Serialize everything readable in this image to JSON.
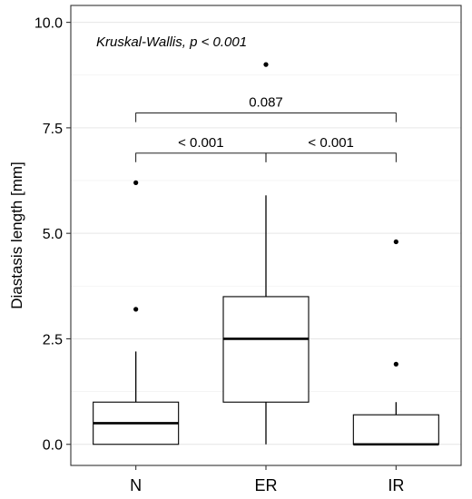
{
  "chart_data": {
    "type": "box",
    "title": "",
    "xlabel": "",
    "ylabel": "Diastasis length [mm]",
    "ylim": [
      -0.5,
      10.4
    ],
    "y_ticks": [
      0.0,
      2.5,
      5.0,
      7.5,
      10.0
    ],
    "y_tick_labels": [
      "0.0",
      "2.5",
      "5.0",
      "7.5",
      "10.0"
    ],
    "grid": true,
    "categories": [
      "N",
      "ER",
      "IR"
    ],
    "boxes": [
      {
        "category": "N",
        "whisker_low": 0.0,
        "q1": 0.0,
        "median": 0.5,
        "q3": 1.0,
        "whisker_high": 2.2,
        "outliers": [
          3.2,
          6.2
        ]
      },
      {
        "category": "ER",
        "whisker_low": 0.0,
        "q1": 1.0,
        "median": 2.5,
        "q3": 3.5,
        "whisker_high": 5.9,
        "outliers": [
          9.0
        ]
      },
      {
        "category": "IR",
        "whisker_low": 0.0,
        "q1": 0.0,
        "median": 0.0,
        "q3": 0.7,
        "whisker_high": 1.0,
        "outliers": [
          1.9,
          4.8
        ]
      }
    ],
    "annotation": "Kruskal-Wallis,  p < 0.001",
    "comparisons": [
      {
        "from": "N",
        "to": "ER",
        "y": 6.9,
        "label": "< 0.001"
      },
      {
        "from": "ER",
        "to": "IR",
        "y": 6.9,
        "label": "< 0.001"
      },
      {
        "from": "N",
        "to": "IR",
        "y": 7.85,
        "label": "0.087"
      }
    ]
  }
}
